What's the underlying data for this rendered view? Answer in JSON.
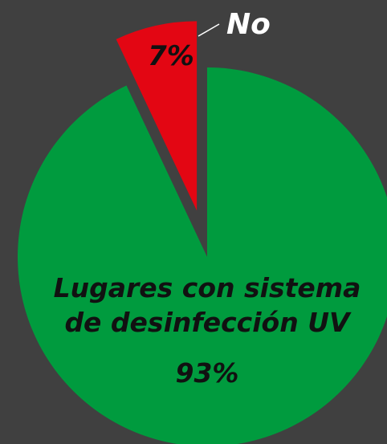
{
  "chart_data": {
    "type": "pie",
    "categories": [
      "Lugares con sistema de desinfección UV",
      "No"
    ],
    "values": [
      93,
      7
    ],
    "value_labels": [
      "93%",
      "7%"
    ],
    "colors": [
      "#009b3e",
      "#e30613"
    ]
  }
}
